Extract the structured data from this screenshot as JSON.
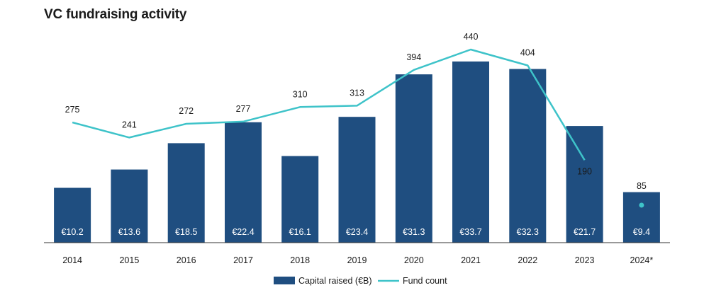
{
  "title": "VC fundraising activity",
  "chart_data": {
    "type": "bar",
    "categories": [
      "2014",
      "2015",
      "2016",
      "2017",
      "2018",
      "2019",
      "2020",
      "2021",
      "2022",
      "2023",
      "2024*"
    ],
    "series": [
      {
        "name": "Capital raised (€B)",
        "type": "bar",
        "values": [
          10.2,
          13.6,
          18.5,
          22.4,
          16.1,
          23.4,
          31.3,
          33.7,
          32.3,
          21.7,
          9.4
        ],
        "labels": [
          "€10.2",
          "€13.6",
          "€18.5",
          "€22.4",
          "€16.1",
          "€23.4",
          "€31.3",
          "€33.7",
          "€32.3",
          "€21.7",
          "€9.4"
        ],
        "color": "#1f4e80"
      },
      {
        "name": "Fund count",
        "type": "line",
        "values": [
          275,
          241,
          272,
          277,
          310,
          313,
          394,
          440,
          404,
          190,
          85
        ],
        "labels": [
          "275",
          "241",
          "272",
          "277",
          "310",
          "313",
          "394",
          "440",
          "404",
          "190",
          "85"
        ],
        "color": "#3ec3c9",
        "note": "line segment ends at 2023; 2024* shown as separate point"
      }
    ],
    "legend_position": "bottom-center",
    "grid": false
  },
  "legend": {
    "bar_label": "Capital raised (€B)",
    "line_label": "Fund count"
  }
}
